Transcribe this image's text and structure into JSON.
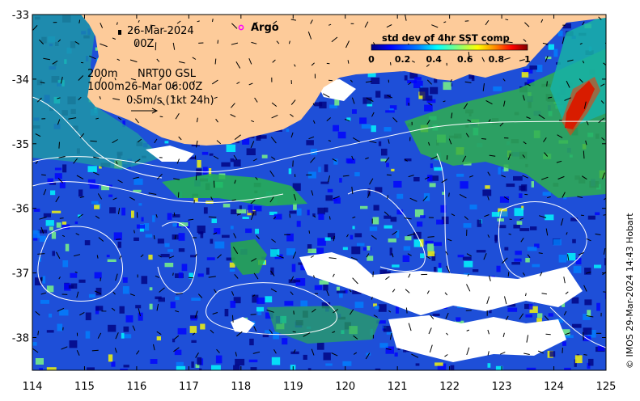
{
  "map": {
    "title_date": "26-Mar-2024",
    "title_time": "00Z",
    "annotation_depths": "200m\n1000m",
    "annotation_source": "NRT00 GSL",
    "annotation_timestamp": "26-Mar 06:00Z",
    "vector_scale_label": "0.5m/s (1kt 24h)",
    "argo_label": "Argo",
    "argo_marker_color": "#ff00ff",
    "credit": "© IMOS 29-Mar-2024 14:43 Hobart",
    "land_color": "#fdcb9a",
    "x_axis": {
      "min": 114,
      "max": 125,
      "ticks": [
        114,
        115,
        116,
        117,
        118,
        119,
        120,
        121,
        122,
        123,
        124,
        125
      ]
    },
    "y_axis": {
      "min": -38.5,
      "max": -33,
      "ticks": [
        -33,
        -34,
        -35,
        -36,
        -37,
        -38
      ]
    },
    "colorbar": {
      "title": "std dev of 4hr SST comp",
      "min": 0,
      "max": 1,
      "ticks": [
        "0",
        "0.2",
        "0.4",
        "0.6",
        "0.8",
        "1"
      ],
      "colors": [
        "#00007f",
        "#0000ff",
        "#0080ff",
        "#00ffff",
        "#80ff80",
        "#ffff00",
        "#ff8000",
        "#ff0000",
        "#7f0000"
      ]
    }
  }
}
